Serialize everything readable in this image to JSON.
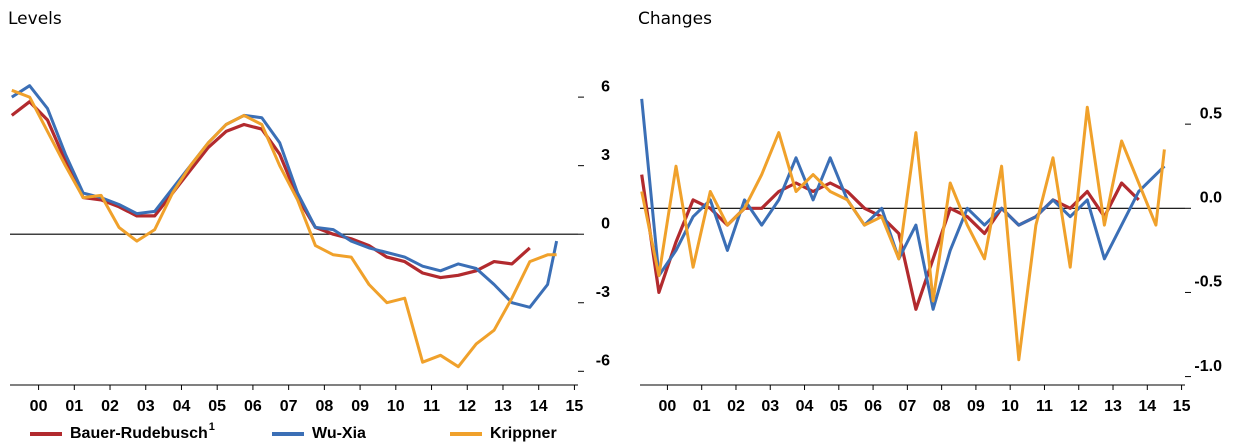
{
  "chart_data": [
    {
      "type": "line",
      "title": "Levels",
      "x": [
        1999.75,
        2000.25,
        2000.75,
        2001.25,
        2001.75,
        2002.25,
        2002.75,
        2003.25,
        2003.75,
        2004.25,
        2004.75,
        2005.25,
        2005.75,
        2006.25,
        2006.75,
        2007.25,
        2007.75,
        2008.25,
        2008.75,
        2009.25,
        2009.75,
        2010.25,
        2010.75,
        2011.25,
        2011.75,
        2012.25,
        2012.75,
        2013.25,
        2013.75,
        2014.25,
        2014.75,
        2015.0
      ],
      "series": [
        {
          "name": "Bauer-Rudebusch",
          "footnote": "1",
          "color": "#b22a2e",
          "values": [
            5.2,
            5.8,
            5.0,
            3.2,
            1.6,
            1.5,
            1.2,
            0.8,
            0.8,
            1.8,
            2.8,
            3.8,
            4.5,
            4.8,
            4.6,
            3.5,
            1.6,
            0.3,
            0.0,
            -0.2,
            -0.5,
            -1.0,
            -1.2,
            -1.7,
            -1.9,
            -1.8,
            -1.6,
            -1.2,
            -1.3,
            -0.6,
            null,
            null
          ]
        },
        {
          "name": "Wu-Xia",
          "color": "#3b6fb6",
          "values": [
            6.0,
            6.5,
            5.5,
            3.5,
            1.8,
            1.6,
            1.3,
            0.9,
            1.0,
            2.0,
            3.0,
            4.0,
            4.8,
            5.2,
            5.1,
            4.0,
            1.8,
            0.3,
            0.2,
            -0.3,
            -0.6,
            -0.8,
            -1.0,
            -1.4,
            -1.6,
            -1.3,
            -1.5,
            -2.2,
            -3.0,
            -3.2,
            -2.2,
            -0.3
          ]
        },
        {
          "name": "Krippner",
          "color": "#f0a12b",
          "values": [
            6.3,
            6.0,
            4.5,
            3.0,
            1.6,
            1.7,
            0.3,
            -0.3,
            0.2,
            1.8,
            3.0,
            4.0,
            4.8,
            5.2,
            4.8,
            3.0,
            1.5,
            -0.5,
            -0.9,
            -1.0,
            -2.2,
            -3.0,
            -2.8,
            -5.6,
            -5.3,
            -5.8,
            -4.8,
            -4.2,
            -2.8,
            -1.2,
            -0.9,
            -0.9
          ]
        }
      ],
      "xlim": [
        1999.7,
        2015.6
      ],
      "ylim": [
        -6.6,
        8.5
      ],
      "yticks": [
        6,
        3,
        0,
        -3,
        -6
      ],
      "xticks": [
        {
          "value": 2000.5,
          "label": "00"
        },
        {
          "value": 2001.5,
          "label": "01"
        },
        {
          "value": 2002.5,
          "label": "02"
        },
        {
          "value": 2003.5,
          "label": "03"
        },
        {
          "value": 2004.5,
          "label": "04"
        },
        {
          "value": 2005.5,
          "label": "05"
        },
        {
          "value": 2006.5,
          "label": "06"
        },
        {
          "value": 2007.5,
          "label": "07"
        },
        {
          "value": 2008.5,
          "label": "08"
        },
        {
          "value": 2009.5,
          "label": "09"
        },
        {
          "value": 2010.5,
          "label": "10"
        },
        {
          "value": 2011.5,
          "label": "11"
        },
        {
          "value": 2012.5,
          "label": "12"
        },
        {
          "value": 2013.5,
          "label": "13"
        },
        {
          "value": 2014.5,
          "label": "14"
        },
        {
          "value": 2015.5,
          "label": "15"
        }
      ]
    },
    {
      "type": "line",
      "title": "Changes",
      "x": [
        1999.75,
        2000.25,
        2000.75,
        2001.25,
        2001.75,
        2002.25,
        2002.75,
        2003.25,
        2003.75,
        2004.25,
        2004.75,
        2005.25,
        2005.75,
        2006.25,
        2006.75,
        2007.25,
        2007.75,
        2008.25,
        2008.75,
        2009.25,
        2009.75,
        2010.25,
        2010.75,
        2011.25,
        2011.75,
        2012.25,
        2012.75,
        2013.25,
        2013.75,
        2014.25,
        2014.75,
        2015.0
      ],
      "series": [
        {
          "name": "Bauer-Rudebusch",
          "color": "#b22a2e",
          "values": [
            0.2,
            -0.5,
            -0.2,
            0.05,
            0.0,
            -0.1,
            0.0,
            0.0,
            0.1,
            0.15,
            0.1,
            0.15,
            0.1,
            0.0,
            -0.05,
            -0.15,
            -0.6,
            -0.3,
            0.0,
            -0.05,
            -0.15,
            0.0,
            -0.1,
            -0.05,
            0.05,
            0.0,
            0.1,
            -0.05,
            0.15,
            0.05,
            null,
            null
          ]
        },
        {
          "name": "Wu-Xia",
          "color": "#3b6fb6",
          "values": [
            0.65,
            -0.4,
            -0.25,
            -0.05,
            0.05,
            -0.25,
            0.05,
            -0.1,
            0.05,
            0.3,
            0.05,
            0.3,
            0.05,
            -0.1,
            0.0,
            -0.3,
            -0.1,
            -0.6,
            -0.25,
            0.0,
            -0.1,
            0.0,
            -0.1,
            -0.05,
            0.05,
            -0.05,
            0.05,
            -0.3,
            -0.1,
            0.1,
            0.2,
            0.25
          ]
        },
        {
          "name": "Krippner",
          "color": "#f0a12b",
          "values": [
            0.1,
            -0.4,
            0.25,
            -0.35,
            0.1,
            -0.1,
            0.0,
            0.2,
            0.45,
            0.1,
            0.2,
            0.1,
            0.05,
            -0.1,
            -0.05,
            -0.3,
            0.45,
            -0.55,
            0.15,
            -0.1,
            -0.3,
            0.25,
            -0.9,
            -0.1,
            0.3,
            -0.35,
            0.6,
            -0.1,
            0.4,
            0.15,
            -0.1,
            0.35
          ]
        }
      ],
      "xlim": [
        1999.7,
        2015.6
      ],
      "ylim": [
        -1.05,
        1.0
      ],
      "yticks": [
        0.5,
        {
          "value": 0,
          "label": "0.0"
        },
        -0.5,
        {
          "value": -1,
          "label": "-1.0"
        }
      ],
      "xticks": [
        {
          "value": 2000.5,
          "label": "00"
        },
        {
          "value": 2001.5,
          "label": "01"
        },
        {
          "value": 2002.5,
          "label": "02"
        },
        {
          "value": 2003.5,
          "label": "03"
        },
        {
          "value": 2004.5,
          "label": "04"
        },
        {
          "value": 2005.5,
          "label": "05"
        },
        {
          "value": 2006.5,
          "label": "06"
        },
        {
          "value": 2007.5,
          "label": "07"
        },
        {
          "value": 2008.5,
          "label": "08"
        },
        {
          "value": 2009.5,
          "label": "09"
        },
        {
          "value": 2010.5,
          "label": "10"
        },
        {
          "value": 2011.5,
          "label": "11"
        },
        {
          "value": 2012.5,
          "label": "12"
        },
        {
          "value": 2013.5,
          "label": "13"
        },
        {
          "value": 2014.5,
          "label": "14"
        },
        {
          "value": 2015.5,
          "label": "15"
        }
      ]
    }
  ]
}
